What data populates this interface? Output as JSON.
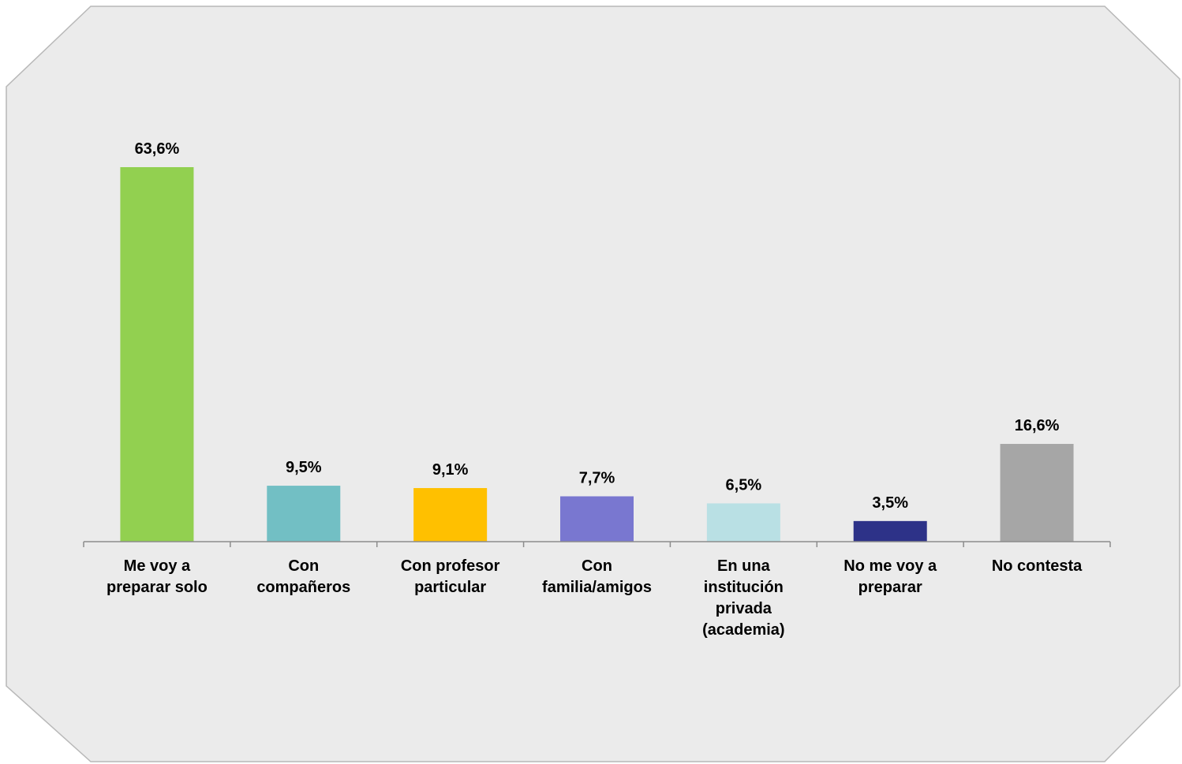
{
  "chart_data": {
    "type": "bar",
    "categories": [
      "Me voy a preparar solo",
      "Con compañeros",
      "Con profesor particular",
      "Con familia/amigos",
      "En una institución privada (academia)",
      "No me voy a preparar",
      "No contesta"
    ],
    "values": [
      63.6,
      9.5,
      9.1,
      7.7,
      6.5,
      3.5,
      16.6
    ],
    "value_labels": [
      "63,6%",
      "9,5%",
      "9,1%",
      "7,7%",
      "6,5%",
      "3,5%",
      "16,6%"
    ],
    "colors": [
      "#92d050",
      "#72bfc4",
      "#ffc000",
      "#7977d0",
      "#b9e0e4",
      "#2d3288",
      "#a6a6a6"
    ]
  }
}
